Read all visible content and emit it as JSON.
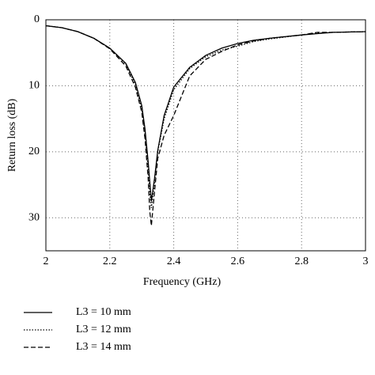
{
  "chart_data": {
    "type": "line",
    "x_label": "Frequency (GHz)",
    "y_label": "Return loss (dB)",
    "x": [
      2.0,
      2.05,
      2.1,
      2.15,
      2.2,
      2.25,
      2.28,
      2.3,
      2.31,
      2.32,
      2.325,
      2.33,
      2.34,
      2.35,
      2.37,
      2.4,
      2.45,
      2.5,
      2.55,
      2.6,
      2.65,
      2.7,
      2.8,
      2.85,
      2.9,
      3.0
    ],
    "series": [
      {
        "name": "L3 = 10 mm",
        "color": "#000000",
        "dash": "solid",
        "values": [
          0.9,
          1.2,
          1.8,
          2.8,
          4.3,
          6.6,
          9.5,
          13.0,
          16.5,
          21.5,
          24.5,
          27.5,
          24.0,
          19.8,
          14.5,
          10.2,
          7.2,
          5.4,
          4.3,
          3.6,
          3.1,
          2.8,
          2.3,
          2.1,
          1.9,
          1.8
        ]
      },
      {
        "name": "L3 = 12 mm",
        "color": "#000000",
        "dash": "dotted",
        "values": [
          0.9,
          1.2,
          1.8,
          2.8,
          4.3,
          6.7,
          9.8,
          13.5,
          17.2,
          22.5,
          26.0,
          28.5,
          24.5,
          20.0,
          15.0,
          10.6,
          7.4,
          5.6,
          4.6,
          4.0,
          3.3,
          2.9,
          2.3,
          2.0,
          1.9,
          1.8
        ]
      },
      {
        "name": "L3 = 14 mm",
        "color": "#000000",
        "dash": "dashed",
        "values": [
          0.9,
          1.2,
          1.8,
          2.8,
          4.4,
          7.0,
          10.2,
          14.0,
          18.0,
          24.0,
          29.0,
          31.2,
          26.0,
          21.0,
          17.5,
          14.5,
          8.5,
          6.0,
          4.8,
          3.8,
          3.2,
          2.8,
          2.3,
          1.9,
          1.9,
          1.8
        ]
      }
    ],
    "xlim": [
      2,
      3
    ],
    "xticks": [
      2,
      2.2,
      2.4,
      2.6,
      2.8,
      3
    ],
    "ylim": [
      35,
      0
    ],
    "yticks": [
      0,
      10,
      20,
      30
    ],
    "grid": true,
    "legend": "bottom-left"
  }
}
